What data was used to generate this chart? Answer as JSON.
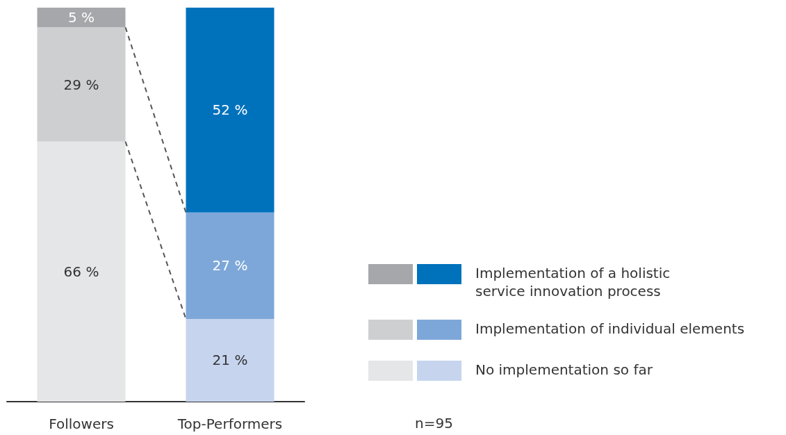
{
  "chart_data": {
    "type": "bar",
    "stacked": true,
    "categories": [
      "Followers",
      "Top-Performers"
    ],
    "series": [
      {
        "name": "No implementation so far",
        "colors": [
          "#e5e6e8",
          "#c6d4ee"
        ],
        "values": [
          66,
          21
        ],
        "value_labels": [
          "66 %",
          "21 %"
        ]
      },
      {
        "name": "Implementation of individual elements",
        "colors": [
          "#cdcfd1",
          "#7da7d9"
        ],
        "values": [
          29,
          27
        ],
        "value_labels": [
          "29 %",
          "27 %"
        ]
      },
      {
        "name": "Implementation of a holistic service innovation process",
        "colors": [
          "#a5a7aa",
          "#0072bc"
        ],
        "values": [
          5,
          52
        ],
        "value_labels": [
          "5 %",
          "52 %"
        ]
      }
    ],
    "legend": "right",
    "annotations": [
      "n=95"
    ]
  }
}
